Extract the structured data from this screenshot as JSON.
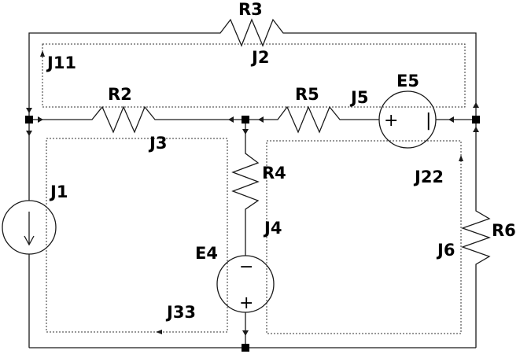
{
  "labels": {
    "R3": "R3",
    "R2": "R2",
    "R5": "R5",
    "R4": "R4",
    "R6": "R6",
    "E5": "E5",
    "E4": "E4",
    "J1": "J1",
    "J2": "J2",
    "J3": "J3",
    "J4": "J4",
    "J5": "J5",
    "J6": "J6",
    "J11": "J11",
    "J22": "J22",
    "J33": "J33"
  },
  "symbols": {
    "plus": "+",
    "minus": "−",
    "bar": "|"
  }
}
